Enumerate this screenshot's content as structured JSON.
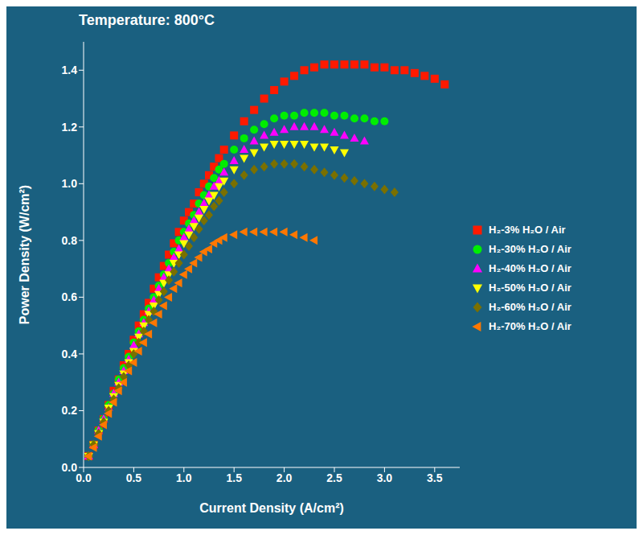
{
  "chart_data": {
    "type": "scatter",
    "title": "Temperature: 800°C",
    "xlabel": "Current Density (A/cm²)",
    "ylabel": "Power Density (W/cm²)",
    "xlim": [
      0.0,
      3.75
    ],
    "ylim": [
      0.0,
      1.5
    ],
    "xticks": [
      {
        "value": 0.0,
        "label": "0.0"
      },
      0.5,
      {
        "value": 1.0,
        "label": "1.0"
      },
      1.5,
      {
        "value": 2.0,
        "label": "2.0"
      },
      2.5,
      {
        "value": 3.0,
        "label": "3.0"
      },
      3.5
    ],
    "yticks": [
      {
        "value": 0.0,
        "label": "0.0"
      },
      0.2,
      0.4,
      0.6,
      0.8,
      {
        "value": 1.0,
        "label": "1.0"
      },
      1.2,
      1.4
    ],
    "grid": false,
    "legend": "right",
    "series": [
      {
        "name": "H₂-3% H₂O / Air",
        "color": "#ff1a00",
        "marker": "square",
        "x": [
          0.05,
          0.1,
          0.15,
          0.2,
          0.25,
          0.3,
          0.35,
          0.4,
          0.45,
          0.5,
          0.55,
          0.6,
          0.65,
          0.7,
          0.75,
          0.8,
          0.85,
          0.9,
          0.95,
          1.0,
          1.05,
          1.1,
          1.15,
          1.2,
          1.25,
          1.3,
          1.35,
          1.4,
          1.5,
          1.6,
          1.7,
          1.8,
          1.9,
          2.0,
          2.1,
          2.2,
          2.3,
          2.4,
          2.5,
          2.6,
          2.7,
          2.8,
          2.9,
          3.0,
          3.1,
          3.2,
          3.3,
          3.4,
          3.5,
          3.6
        ],
        "values": [
          0.04,
          0.08,
          0.13,
          0.17,
          0.22,
          0.27,
          0.31,
          0.36,
          0.4,
          0.45,
          0.5,
          0.54,
          0.58,
          0.63,
          0.67,
          0.71,
          0.75,
          0.79,
          0.83,
          0.87,
          0.9,
          0.93,
          0.97,
          1.0,
          1.03,
          1.06,
          1.09,
          1.12,
          1.17,
          1.22,
          1.26,
          1.3,
          1.33,
          1.36,
          1.38,
          1.4,
          1.41,
          1.42,
          1.42,
          1.42,
          1.42,
          1.42,
          1.41,
          1.41,
          1.4,
          1.4,
          1.39,
          1.38,
          1.37,
          1.35
        ]
      },
      {
        "name": "H₂-30% H₂O / Air",
        "color": "#00ee00",
        "marker": "circle",
        "x": [
          0.05,
          0.1,
          0.15,
          0.2,
          0.25,
          0.3,
          0.35,
          0.4,
          0.45,
          0.5,
          0.55,
          0.6,
          0.65,
          0.7,
          0.75,
          0.8,
          0.85,
          0.9,
          0.95,
          1.0,
          1.05,
          1.1,
          1.15,
          1.2,
          1.25,
          1.3,
          1.35,
          1.4,
          1.5,
          1.6,
          1.7,
          1.8,
          1.9,
          2.0,
          2.1,
          2.2,
          2.3,
          2.4,
          2.5,
          2.6,
          2.7,
          2.8,
          2.9,
          3.0
        ],
        "values": [
          0.04,
          0.08,
          0.13,
          0.17,
          0.22,
          0.26,
          0.31,
          0.35,
          0.39,
          0.44,
          0.48,
          0.52,
          0.56,
          0.6,
          0.64,
          0.68,
          0.72,
          0.76,
          0.8,
          0.83,
          0.86,
          0.89,
          0.93,
          0.96,
          0.99,
          1.02,
          1.05,
          1.07,
          1.12,
          1.16,
          1.19,
          1.21,
          1.23,
          1.24,
          1.24,
          1.25,
          1.25,
          1.25,
          1.24,
          1.24,
          1.23,
          1.23,
          1.22,
          1.22
        ]
      },
      {
        "name": "H₂-40% H₂O / Air",
        "color": "#ff00ff",
        "marker": "triangle_up",
        "x": [
          0.05,
          0.1,
          0.15,
          0.2,
          0.25,
          0.3,
          0.35,
          0.4,
          0.45,
          0.5,
          0.55,
          0.6,
          0.65,
          0.7,
          0.75,
          0.8,
          0.85,
          0.9,
          0.95,
          1.0,
          1.05,
          1.1,
          1.15,
          1.2,
          1.25,
          1.3,
          1.35,
          1.4,
          1.5,
          1.6,
          1.7,
          1.8,
          1.9,
          2.0,
          2.1,
          2.2,
          2.3,
          2.4,
          2.5,
          2.6,
          2.7,
          2.8
        ],
        "values": [
          0.04,
          0.08,
          0.13,
          0.17,
          0.21,
          0.26,
          0.3,
          0.34,
          0.38,
          0.43,
          0.47,
          0.51,
          0.55,
          0.59,
          0.63,
          0.67,
          0.7,
          0.74,
          0.77,
          0.81,
          0.84,
          0.87,
          0.9,
          0.93,
          0.96,
          0.99,
          1.01,
          1.04,
          1.08,
          1.12,
          1.15,
          1.17,
          1.18,
          1.19,
          1.2,
          1.2,
          1.2,
          1.19,
          1.18,
          1.17,
          1.16,
          1.15
        ]
      },
      {
        "name": "H₂-50% H₂O / Air",
        "color": "#ffff00",
        "marker": "triangle_down",
        "x": [
          0.05,
          0.1,
          0.15,
          0.2,
          0.25,
          0.3,
          0.35,
          0.4,
          0.45,
          0.5,
          0.55,
          0.6,
          0.65,
          0.7,
          0.75,
          0.8,
          0.85,
          0.9,
          0.95,
          1.0,
          1.05,
          1.1,
          1.15,
          1.2,
          1.25,
          1.3,
          1.35,
          1.4,
          1.5,
          1.6,
          1.7,
          1.8,
          1.9,
          2.0,
          2.1,
          2.2,
          2.3,
          2.4,
          2.5,
          2.6
        ],
        "values": [
          0.04,
          0.08,
          0.12,
          0.16,
          0.21,
          0.25,
          0.29,
          0.33,
          0.37,
          0.41,
          0.46,
          0.5,
          0.54,
          0.57,
          0.61,
          0.65,
          0.68,
          0.72,
          0.75,
          0.79,
          0.82,
          0.85,
          0.88,
          0.91,
          0.94,
          0.96,
          0.99,
          1.01,
          1.05,
          1.09,
          1.11,
          1.13,
          1.14,
          1.14,
          1.14,
          1.14,
          1.13,
          1.13,
          1.12,
          1.11
        ]
      },
      {
        "name": "H₂-60% H₂O / Air",
        "color": "#7a7000",
        "marker": "diamond",
        "x": [
          0.05,
          0.1,
          0.15,
          0.2,
          0.25,
          0.3,
          0.35,
          0.4,
          0.45,
          0.5,
          0.55,
          0.6,
          0.65,
          0.7,
          0.75,
          0.8,
          0.85,
          0.9,
          0.95,
          1.0,
          1.05,
          1.1,
          1.15,
          1.2,
          1.25,
          1.3,
          1.35,
          1.4,
          1.5,
          1.6,
          1.7,
          1.8,
          1.9,
          2.0,
          2.1,
          2.2,
          2.3,
          2.4,
          2.5,
          2.6,
          2.7,
          2.8,
          2.9,
          3.0,
          3.1
        ],
        "values": [
          0.04,
          0.08,
          0.12,
          0.16,
          0.2,
          0.24,
          0.28,
          0.32,
          0.36,
          0.4,
          0.44,
          0.48,
          0.52,
          0.55,
          0.59,
          0.62,
          0.66,
          0.69,
          0.72,
          0.75,
          0.78,
          0.81,
          0.84,
          0.87,
          0.89,
          0.92,
          0.94,
          0.97,
          1.0,
          1.03,
          1.05,
          1.06,
          1.07,
          1.07,
          1.07,
          1.06,
          1.05,
          1.04,
          1.03,
          1.02,
          1.01,
          1.0,
          0.99,
          0.98,
          0.97
        ]
      },
      {
        "name": "H₂-70% H₂O / Air",
        "color": "#ff7700",
        "marker": "triangle_left",
        "x": [
          0.05,
          0.1,
          0.15,
          0.2,
          0.25,
          0.3,
          0.35,
          0.4,
          0.45,
          0.5,
          0.55,
          0.6,
          0.65,
          0.7,
          0.75,
          0.8,
          0.85,
          0.9,
          0.95,
          1.0,
          1.05,
          1.1,
          1.15,
          1.2,
          1.25,
          1.3,
          1.35,
          1.4,
          1.5,
          1.6,
          1.7,
          1.8,
          1.9,
          2.0,
          2.1,
          2.2,
          2.3
        ],
        "values": [
          0.04,
          0.07,
          0.11,
          0.15,
          0.19,
          0.23,
          0.27,
          0.3,
          0.34,
          0.37,
          0.41,
          0.44,
          0.47,
          0.51,
          0.54,
          0.57,
          0.6,
          0.63,
          0.65,
          0.68,
          0.7,
          0.72,
          0.74,
          0.76,
          0.77,
          0.79,
          0.8,
          0.81,
          0.82,
          0.83,
          0.83,
          0.83,
          0.83,
          0.83,
          0.82,
          0.81,
          0.8
        ]
      }
    ]
  }
}
